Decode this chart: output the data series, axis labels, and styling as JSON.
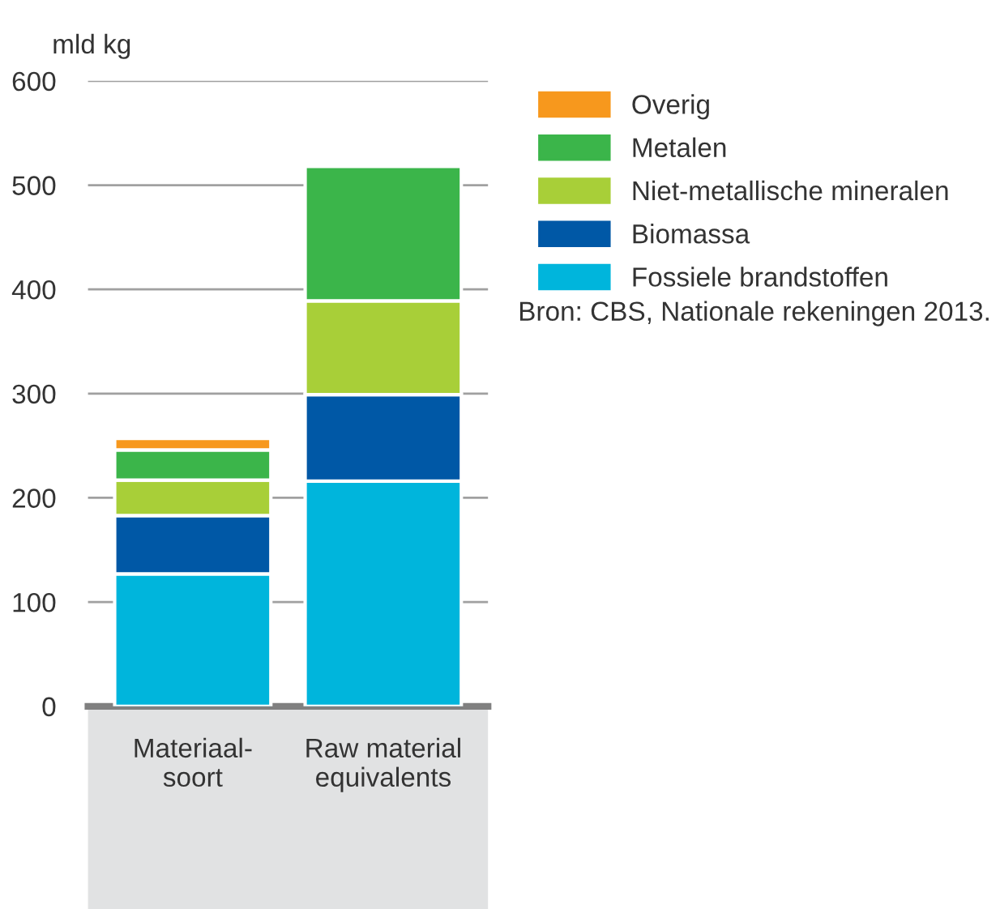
{
  "chart_data": {
    "type": "bar",
    "stacked": true,
    "ylabel": "mld kg",
    "categories": [
      "Materiaal-\nsoort",
      "Raw material\nequivalents"
    ],
    "series": [
      {
        "name": "Fossiele brandstoffen",
        "color": "#00b5dc",
        "values": [
          127,
          216
        ]
      },
      {
        "name": "Biomassa",
        "color": "#0058a6",
        "values": [
          56,
          83
        ]
      },
      {
        "name": "Niet-metallische mineralen",
        "color": "#a8cf38",
        "values": [
          34,
          90
        ]
      },
      {
        "name": "Metalen",
        "color": "#3bb54a",
        "values": [
          29,
          129
        ]
      },
      {
        "name": "Overig",
        "color": "#f7981d",
        "values": [
          11,
          null
        ]
      }
    ],
    "ylim": [
      0,
      600
    ],
    "yticks": [
      0,
      100,
      200,
      300,
      400,
      500,
      600
    ],
    "grid": "y",
    "legend": "top right",
    "annotations": [
      "Bron: CBS, Nationale rekeningen 2013."
    ]
  }
}
